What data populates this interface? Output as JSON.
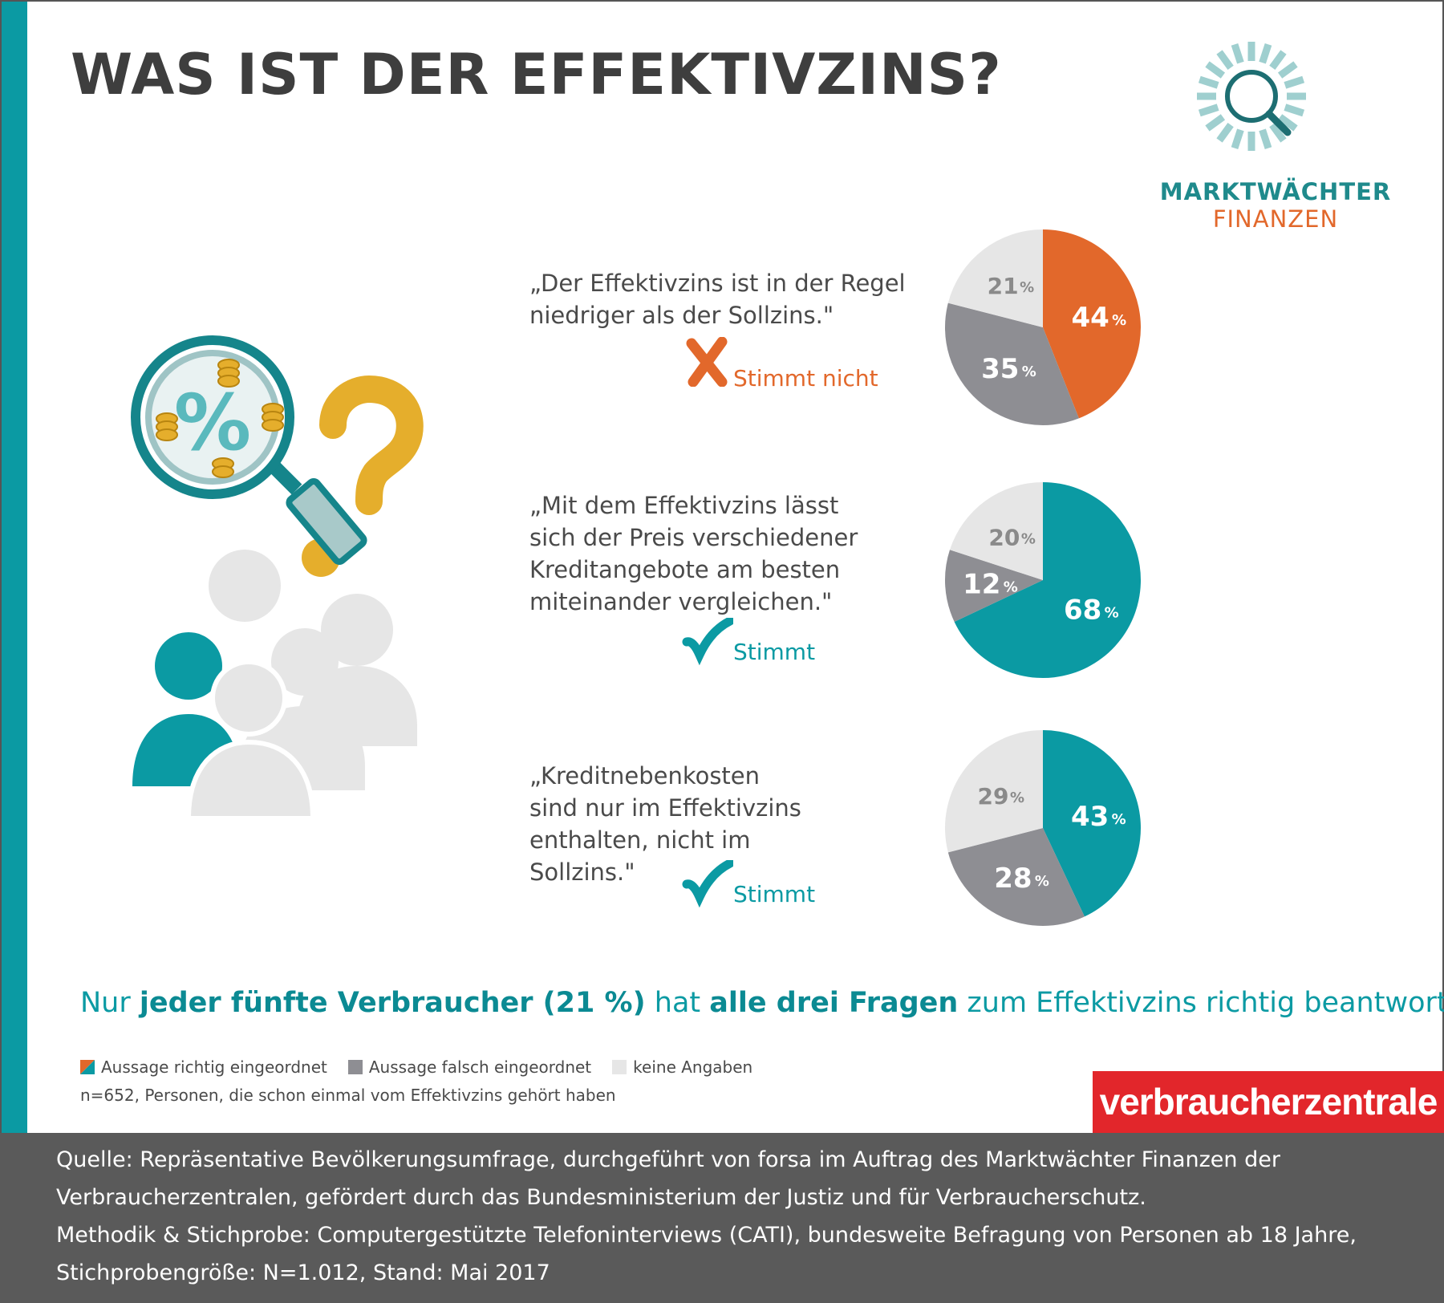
{
  "title": "WAS IST DER EFFEKTIVZINS?",
  "logo": {
    "name": "MARKTWÄCHTER",
    "sub": "FINANZEN",
    "icon": "magnifier-sunburst-icon"
  },
  "colors": {
    "teal": "#0b9aa3",
    "orange": "#e2682b",
    "gray": "#8e8e93",
    "light": "#e6e6e6",
    "red": "#e2262b"
  },
  "items": [
    {
      "question": "„Der Effektivzins ist in der Regel\nniedriger als der Sollzins.\"",
      "verdict": "Stimmt nicht",
      "verdict_icon": "cross-icon"
    },
    {
      "question": "„Mit dem Effektivzins lässt\nsich der Preis verschiedener\nKreditangebote am besten\nmiteinander vergleichen.\"",
      "verdict": "Stimmt",
      "verdict_icon": "checkmark-icon"
    },
    {
      "question": "„Kreditnebenkosten\nsind nur im Effektivzins\nenthalten, nicht im\nSollzins.\"",
      "verdict": "Stimmt",
      "verdict_icon": "checkmark-icon"
    }
  ],
  "chart_data": [
    {
      "type": "pie",
      "slices": [
        {
          "label": "44",
          "value": 44,
          "category": "richtig"
        },
        {
          "label": "35",
          "value": 35,
          "category": "falsch"
        },
        {
          "label": "21",
          "value": 21,
          "category": "keine"
        }
      ],
      "unit": "%"
    },
    {
      "type": "pie",
      "slices": [
        {
          "label": "68",
          "value": 68,
          "category": "richtig"
        },
        {
          "label": "12",
          "value": 12,
          "category": "falsch"
        },
        {
          "label": "20",
          "value": 20,
          "category": "keine"
        }
      ],
      "unit": "%"
    },
    {
      "type": "pie",
      "slices": [
        {
          "label": "43",
          "value": 43,
          "category": "richtig"
        },
        {
          "label": "28",
          "value": 28,
          "category": "falsch"
        },
        {
          "label": "29",
          "value": 29,
          "category": "keine"
        }
      ],
      "unit": "%"
    }
  ],
  "summary": {
    "part1": "Nur ",
    "bold1": "jeder fünfte Verbraucher (21 %)",
    "part2": " hat ",
    "bold2": "alle drei Fragen",
    "part3": " zum Effektivzins richtig beantwortet."
  },
  "legend": [
    {
      "label": "Aussage richtig eingeordnet",
      "colors": [
        "#0b9aa3",
        "#e2682b"
      ]
    },
    {
      "label": "Aussage falsch eingeordnet",
      "colors": [
        "#8e8e93"
      ]
    },
    {
      "label": "keine Angaben",
      "colors": [
        "#e6e6e6"
      ]
    }
  ],
  "note": "n=652, Personen, die schon einmal vom Effektivzins gehört haben",
  "brand": "verbraucherzentrale",
  "source": [
    "Quelle:  Repräsentative Bevölkerungsumfrage, durchgeführt von forsa im Auftrag des Marktwächter Finanzen der",
    "Verbraucherzentralen, gefördert durch das Bundesministerium der Justiz und für Verbraucherschutz.",
    "Methodik & Stichprobe: Computergestützte Telefoninterviews (CATI), bundesweite Befragung von Personen ab 18 Jahre,",
    "Stichprobengröße: N=1.012, Stand: Mai 2017"
  ]
}
